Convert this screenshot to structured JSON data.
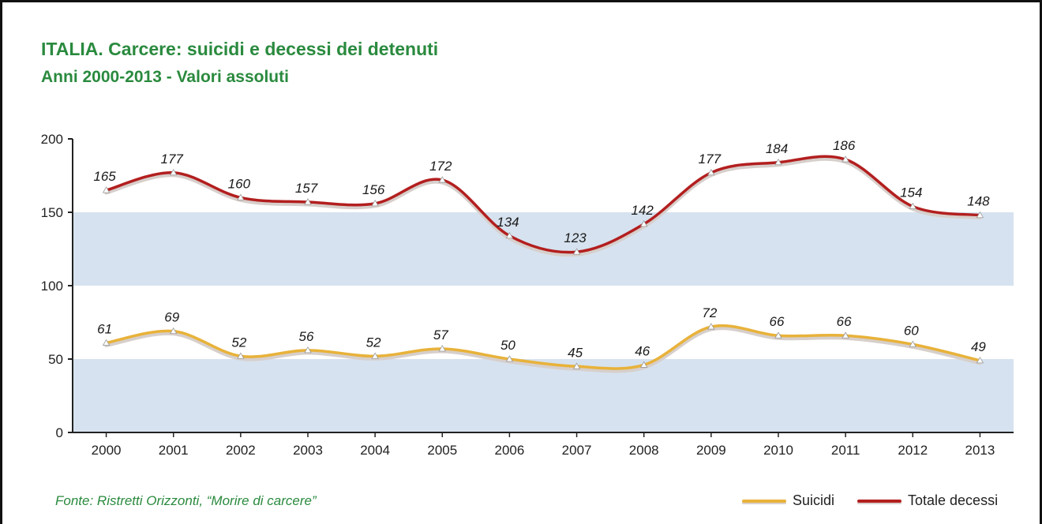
{
  "chart_data": {
    "type": "line",
    "title": "ITALIA. Carcere: suicidi e decessi dei detenuti",
    "subtitle": "Anni 2000-2013 - Valori assoluti",
    "source": "Fonte: Ristretti Orizzonti, “Morire di carcere”",
    "x": [
      "2000",
      "2001",
      "2002",
      "2003",
      "2004",
      "2005",
      "2006",
      "2007",
      "2008",
      "2009",
      "2010",
      "2011",
      "2012",
      "2013"
    ],
    "ylim": [
      0,
      200
    ],
    "yticks": [
      0,
      50,
      100,
      150,
      200
    ],
    "bands": [
      [
        0,
        50
      ],
      [
        100,
        150
      ]
    ],
    "grid": false,
    "legend_position": "bottom-right",
    "series": [
      {
        "name": "Suicidi",
        "color": "#e8b23a",
        "values": [
          61,
          69,
          52,
          56,
          52,
          57,
          50,
          45,
          46,
          72,
          66,
          66,
          60,
          49
        ]
      },
      {
        "name": "Totale decessi",
        "color": "#b31f1f",
        "values": [
          165,
          177,
          160,
          157,
          156,
          172,
          134,
          123,
          142,
          177,
          184,
          186,
          154,
          148
        ]
      }
    ],
    "band_color": "#d6e2ef"
  }
}
